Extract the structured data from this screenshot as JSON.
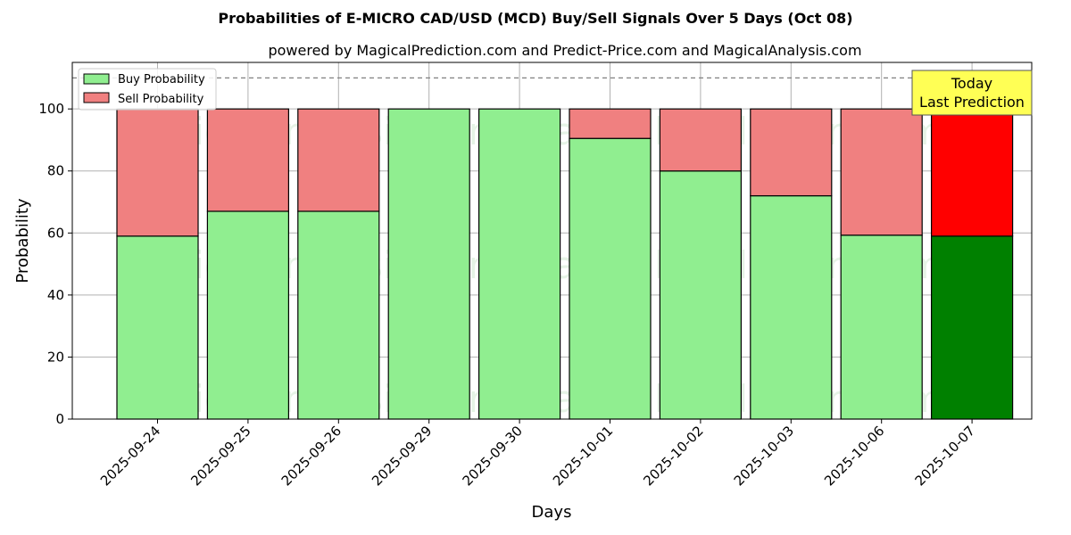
{
  "chart_data": {
    "type": "bar",
    "stacked": true,
    "title": "Probabilities of E-MICRO CAD/USD (MCD) Buy/Sell Signals Over 5 Days (Oct 08)",
    "subtitle": "powered by MagicalPrediction.com and Predict-Price.com and MagicalAnalysis.com",
    "xlabel": "Days",
    "ylabel": "Probability",
    "ylim": [
      0,
      115
    ],
    "yticks": [
      0,
      20,
      40,
      60,
      80,
      100
    ],
    "grid": true,
    "legend_position": "top-left",
    "reference_line": 110,
    "categories": [
      "2025-09-24",
      "2025-09-25",
      "2025-09-26",
      "2025-09-29",
      "2025-09-30",
      "2025-10-01",
      "2025-10-02",
      "2025-10-03",
      "2025-10-06",
      "2025-10-07"
    ],
    "series": [
      {
        "name": "Buy Probability",
        "color": "#90ee90",
        "highlight_color": "#008000",
        "values": [
          59,
          67,
          67,
          100,
          100,
          90.5,
          80,
          72,
          59.3,
          59
        ]
      },
      {
        "name": "Sell Probability",
        "color": "#f08080",
        "highlight_color": "#ff0000",
        "values": [
          41,
          33,
          33,
          0,
          0,
          9.5,
          20,
          28,
          40.7,
          41
        ]
      }
    ],
    "highlight_index": 9,
    "annotation": {
      "line1": "Today",
      "line2": "Last Prediction",
      "background": "#ffff55"
    },
    "watermarks": [
      "MagicalAnalysis.com",
      "MagicalPrediction.com"
    ]
  }
}
